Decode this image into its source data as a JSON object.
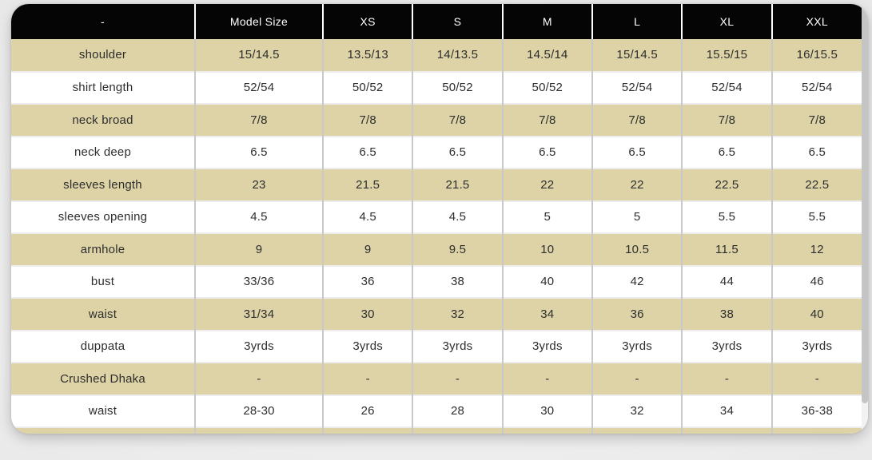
{
  "table": {
    "columns": [
      "-",
      "Model Size",
      "XS",
      "S",
      "M",
      "L",
      "XL",
      "XXL"
    ],
    "rows": [
      {
        "label": "shoulder",
        "values": [
          "15/14.5",
          "13.5/13",
          "14/13.5",
          "14.5/14",
          "15/14.5",
          "15.5/15",
          "16/15.5"
        ]
      },
      {
        "label": "shirt length",
        "values": [
          "52/54",
          "50/52",
          "50/52",
          "50/52",
          "52/54",
          "52/54",
          "52/54"
        ]
      },
      {
        "label": "neck broad",
        "values": [
          "7/8",
          "7/8",
          "7/8",
          "7/8",
          "7/8",
          "7/8",
          "7/8"
        ]
      },
      {
        "label": "neck deep",
        "values": [
          "6.5",
          "6.5",
          "6.5",
          "6.5",
          "6.5",
          "6.5",
          "6.5"
        ]
      },
      {
        "label": "sleeves length",
        "values": [
          "23",
          "21.5",
          "21.5",
          "22",
          "22",
          "22.5",
          "22.5"
        ]
      },
      {
        "label": "sleeves opening",
        "values": [
          "4.5",
          "4.5",
          "4.5",
          "5",
          "5",
          "5.5",
          "5.5"
        ]
      },
      {
        "label": "armhole",
        "values": [
          "9",
          "9",
          "9.5",
          "10",
          "10.5",
          "11.5",
          "12"
        ]
      },
      {
        "label": "bust",
        "values": [
          "33/36",
          "36",
          "38",
          "40",
          "42",
          "44",
          "46"
        ]
      },
      {
        "label": "waist",
        "values": [
          "31/34",
          "30",
          "32",
          "34",
          "36",
          "38",
          "40"
        ]
      },
      {
        "label": "duppata",
        "values": [
          "3yrds",
          "3yrds",
          "3yrds",
          "3yrds",
          "3yrds",
          "3yrds",
          "3yrds"
        ]
      },
      {
        "label": "Crushed Dhaka",
        "values": [
          "-",
          "-",
          "-",
          "-",
          "-",
          "-",
          "-"
        ]
      },
      {
        "label": "waist",
        "values": [
          "28-30",
          "26",
          "28",
          "30",
          "32",
          "34",
          "36-38"
        ]
      },
      {
        "label": "",
        "values": [
          "",
          "",
          "",
          "",
          "",
          "",
          ""
        ],
        "clipped": true
      }
    ]
  },
  "colors": {
    "header_bg": "#050505",
    "header_text": "#ffffff",
    "row_alt_bg": "#ddd3a6",
    "row_bg": "#ffffff",
    "body_text": "#2e2e2e",
    "grid_vertical": "#c9c9c9",
    "grid_horizontal": "#ededed",
    "scrollbar_thumb": "#c5c5c5",
    "scrollbar_track": "#f2f2f2"
  }
}
